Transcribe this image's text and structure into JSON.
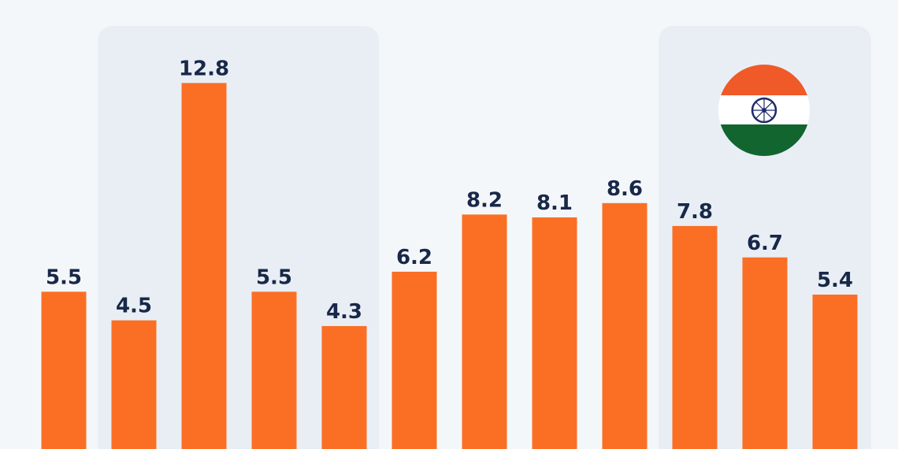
{
  "chart_data": {
    "type": "bar",
    "categories": [
      null,
      null,
      null,
      null,
      null,
      null,
      null,
      null,
      null,
      null,
      null,
      null
    ],
    "values": [
      5.5,
      4.5,
      12.8,
      5.5,
      4.3,
      6.2,
      8.2,
      8.1,
      8.6,
      7.8,
      6.7,
      5.4
    ],
    "color": "#fb6f24"
  }
}
